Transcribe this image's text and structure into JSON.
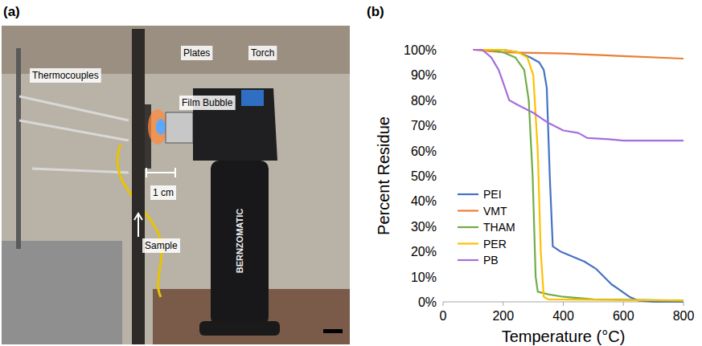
{
  "figure": {
    "panel_labels": [
      "(a)",
      "(b)"
    ]
  },
  "photo": {
    "labels": [
      "Thermocouples",
      "Plates",
      "Film Bubble",
      "Torch",
      "1 cm",
      "Sample"
    ],
    "brand": "BERNZOMATIC"
  },
  "chart_data": {
    "type": "line",
    "x_label": "Temperature (°C)",
    "y_label": "Percent Residue",
    "xlim": [
      0,
      800
    ],
    "xticks": [
      0,
      200,
      400,
      600,
      800
    ],
    "ylim": [
      0,
      100
    ],
    "yticks": [
      {
        "value": 0,
        "label": "0%"
      },
      {
        "value": 10,
        "label": "10%"
      },
      {
        "value": 20,
        "label": "20%"
      },
      {
        "value": 30,
        "label": "30%"
      },
      {
        "value": 40,
        "label": "40%"
      },
      {
        "value": 50,
        "label": "50%"
      },
      {
        "value": 60,
        "label": "60%"
      },
      {
        "value": 70,
        "label": "70%"
      },
      {
        "value": 80,
        "label": "80%"
      },
      {
        "value": 90,
        "label": "90%"
      },
      {
        "value": 100,
        "label": "100%"
      }
    ],
    "grid": false,
    "legend": "left",
    "series": [
      {
        "name": "PEI",
        "color": "#4472c4",
        "x": [
          100,
          200,
          250,
          290,
          320,
          335,
          345,
          355,
          365,
          390,
          430,
          470,
          510,
          560,
          620,
          650,
          700,
          800
        ],
        "values": [
          100,
          100,
          99,
          97,
          95,
          92,
          85,
          50,
          22,
          20,
          18,
          16,
          13,
          7,
          2,
          0.5,
          0,
          0
        ]
      },
      {
        "name": "VMT",
        "color": "#ed7d31",
        "x": [
          100,
          200,
          400,
          600,
          800
        ],
        "values": [
          100,
          99,
          98.5,
          97.5,
          96.5
        ]
      },
      {
        "name": "THAM",
        "color": "#70ad47",
        "x": [
          100,
          150,
          200,
          240,
          270,
          285,
          298,
          308,
          315,
          350,
          400,
          500,
          800
        ],
        "values": [
          100,
          100,
          99,
          97,
          92,
          80,
          50,
          10,
          4,
          3,
          2,
          1,
          0.5
        ]
      },
      {
        "name": "PER",
        "color": "#ffc000",
        "x": [
          100,
          200,
          250,
          280,
          300,
          315,
          325,
          335,
          350,
          800
        ],
        "values": [
          100,
          100,
          99,
          97,
          90,
          60,
          20,
          2,
          1,
          0.5
        ]
      },
      {
        "name": "PB",
        "color": "#a56edb",
        "x": [
          100,
          130,
          160,
          185,
          200,
          220,
          250,
          300,
          350,
          400,
          450,
          480,
          550,
          600,
          800
        ],
        "values": [
          100,
          100,
          97,
          92,
          87,
          80,
          78,
          75,
          71,
          68,
          67,
          65,
          64.5,
          64,
          64
        ]
      }
    ]
  }
}
